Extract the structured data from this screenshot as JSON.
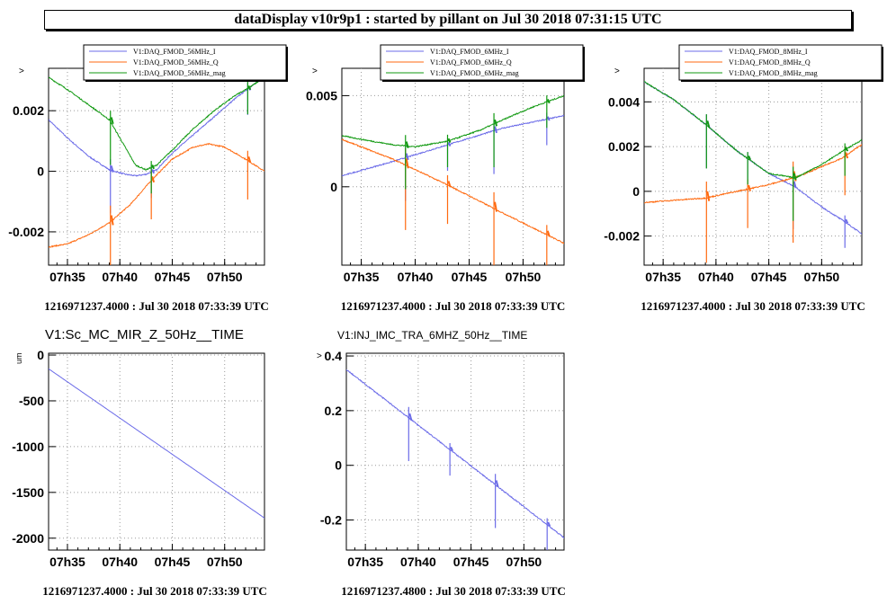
{
  "window_title": "dataDisplay v10r9p1 : started by pillant on Jul 30 2018 07:31:15 UTC",
  "colors": {
    "blue": "#6b6be8",
    "orange": "#ff6a10",
    "green": "#119911",
    "grid": "#9a9a9a"
  },
  "chart_data": [
    {
      "type": "line",
      "ylabel": ">",
      "x_ticks": [
        "07h35",
        "07h40",
        "07h45",
        "07h50"
      ],
      "x_tick_values": [
        35,
        40,
        45,
        50
      ],
      "xlim": [
        33.2,
        53.8
      ],
      "y_ticks": [
        "0.002",
        "0",
        "-0.002"
      ],
      "y_tick_values": [
        0.002,
        0,
        -0.002
      ],
      "ylim": [
        -0.0031,
        0.0034
      ],
      "footer": "1216971237.4000 : Jul 30 2018 07:33:39 UTC",
      "series": [
        {
          "name": "V1:DAQ_FMOD_56MHz_I",
          "color": "blue",
          "x": [
            33.2,
            35,
            37,
            39,
            40.5,
            41.5,
            42.5,
            43.5,
            45,
            47,
            49,
            51,
            52.5,
            53.8
          ],
          "y": [
            0.0017,
            0.0011,
            0.0005,
            5e-05,
            -0.0001,
            -0.00015,
            -0.0001,
            5e-05,
            0.0006,
            0.0012,
            0.0018,
            0.0024,
            0.0028,
            0.0031
          ]
        },
        {
          "name": "V1:DAQ_FMOD_56MHz_Q",
          "color": "orange",
          "x": [
            33.2,
            35,
            37,
            39,
            41,
            43,
            45,
            47,
            48.5,
            50,
            52,
            53.8
          ],
          "y": [
            -0.0025,
            -0.0024,
            -0.0021,
            -0.0017,
            -0.0011,
            -0.0003,
            0.0004,
            0.0008,
            0.0009,
            0.0008,
            0.0004,
            0.0
          ]
        },
        {
          "name": "V1:DAQ_FMOD_56MHz_mag",
          "color": "green",
          "x": [
            33.2,
            35,
            37,
            39,
            40.5,
            41.5,
            42.5,
            43.5,
            45,
            47,
            49,
            51,
            52.5,
            53.8
          ],
          "y": [
            0.0031,
            0.0027,
            0.0022,
            0.0017,
            0.0008,
            0.0002,
            5e-05,
            0.0002,
            0.0007,
            0.0014,
            0.002,
            0.0025,
            0.0028,
            0.0031
          ]
        }
      ]
    },
    {
      "type": "line",
      "ylabel": ">",
      "x_ticks": [
        "07h35",
        "07h40",
        "07h45",
        "07h50"
      ],
      "x_tick_values": [
        35,
        40,
        45,
        50
      ],
      "xlim": [
        33.2,
        53.8
      ],
      "y_ticks": [
        "0.005",
        "0"
      ],
      "y_tick_values": [
        0.005,
        0
      ],
      "ylim": [
        -0.0043,
        0.0065
      ],
      "footer": "1216971237.4000 : Jul 30 2018 07:33:39 UTC",
      "series": [
        {
          "name": "V1:DAQ_FMOD_6MHz_I",
          "color": "blue",
          "x": [
            33.2,
            38,
            43,
            48,
            53.8
          ],
          "y": [
            0.0006,
            0.0014,
            0.0023,
            0.0032,
            0.0039
          ]
        },
        {
          "name": "V1:DAQ_FMOD_6MHz_Q",
          "color": "orange",
          "x": [
            33.2,
            38,
            43,
            48,
            53.8
          ],
          "y": [
            0.0026,
            0.0015,
            0.0001,
            -0.0014,
            -0.0031
          ]
        },
        {
          "name": "V1:DAQ_FMOD_6MHz_mag",
          "color": "green",
          "x": [
            33.2,
            36,
            38,
            40,
            43,
            46,
            49,
            51,
            53.8
          ],
          "y": [
            0.0028,
            0.0025,
            0.0023,
            0.0022,
            0.0025,
            0.0031,
            0.0039,
            0.0044,
            0.005
          ]
        }
      ]
    },
    {
      "type": "line",
      "ylabel": ">",
      "x_ticks": [
        "07h35",
        "07h40",
        "07h45",
        "07h50"
      ],
      "x_tick_values": [
        35,
        40,
        45,
        50
      ],
      "xlim": [
        33.2,
        53.8
      ],
      "y_ticks": [
        "0.004",
        "0.002",
        "0",
        "-0.002"
      ],
      "y_tick_values": [
        0.004,
        0.002,
        0,
        -0.002
      ],
      "ylim": [
        -0.0033,
        0.0055
      ],
      "footer": "1216971237.4000 : Jul 30 2018 07:33:39 UTC",
      "series": [
        {
          "name": "V1:DAQ_FMOD_8MHz_I",
          "color": "blue",
          "x": [
            33.2,
            36,
            39,
            42,
            45,
            47.5,
            50,
            52,
            53.8
          ],
          "y": [
            0.0049,
            0.0041,
            0.003,
            0.0018,
            0.0008,
            0.0002,
            -0.0007,
            -0.0013,
            -0.0019
          ]
        },
        {
          "name": "V1:DAQ_FMOD_8MHz_Q",
          "color": "orange",
          "x": [
            33.2,
            36,
            39,
            42,
            45,
            48,
            50,
            52,
            53.8
          ],
          "y": [
            -0.0005,
            -0.0004,
            -0.0003,
            0.0,
            0.0003,
            0.0007,
            0.0011,
            0.0015,
            0.0021
          ]
        },
        {
          "name": "V1:DAQ_FMOD_8MHz_mag",
          "color": "green",
          "x": [
            33.2,
            36,
            39,
            42,
            45,
            47.5,
            50,
            52,
            53.8
          ],
          "y": [
            0.0049,
            0.0041,
            0.003,
            0.0018,
            0.0008,
            0.0006,
            0.0012,
            0.0018,
            0.0023
          ]
        }
      ]
    },
    {
      "type": "line",
      "title": "V1:Sc_MC_MIR_Z_50Hz__TIME",
      "ylabel": "um",
      "x_ticks": [
        "07h35",
        "07h40",
        "07h45",
        "07h50"
      ],
      "x_tick_values": [
        35,
        40,
        45,
        50
      ],
      "xlim": [
        33.2,
        53.8
      ],
      "y_ticks": [
        "0",
        "-500",
        "-1000",
        "-1500",
        "-2000"
      ],
      "y_tick_values": [
        0,
        -500,
        -1000,
        -1500,
        -2000
      ],
      "ylim": [
        -2130,
        20
      ],
      "footer": "1216971237.4000 : Jul 30 2018 07:33:39 UTC",
      "series": [
        {
          "color": "blue",
          "x": [
            33.2,
            53.8
          ],
          "y": [
            -150,
            -1780
          ]
        }
      ]
    },
    {
      "type": "line",
      "title": "V1:INJ_IMC_TRA_6MHZ_50Hz__TIME",
      "ylabel": ">",
      "x_ticks": [
        "07h35",
        "07h40",
        "07h45",
        "07h50"
      ],
      "x_tick_values": [
        35,
        40,
        45,
        50
      ],
      "xlim": [
        33.2,
        53.8
      ],
      "y_ticks": [
        "0.4",
        "0.2",
        "0",
        "-0.2"
      ],
      "y_tick_values": [
        0.4,
        0.2,
        0,
        -0.2
      ],
      "ylim": [
        -0.31,
        0.41
      ],
      "footer": "1216971237.4800 : Jul 30 2018 07:33:39 UTC",
      "series": [
        {
          "color": "blue",
          "x": [
            33.2,
            53.8
          ],
          "y": [
            0.35,
            -0.265
          ]
        }
      ]
    }
  ]
}
